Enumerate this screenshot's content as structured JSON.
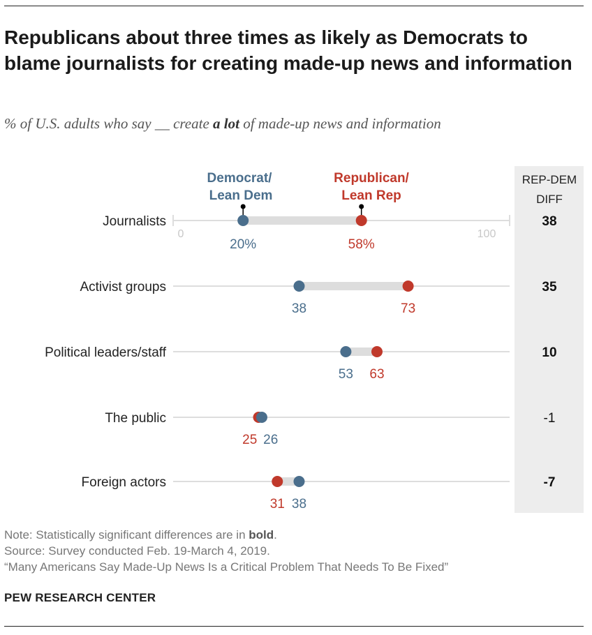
{
  "title": "Republicans about three times as likely as Democrats to blame journalists for creating made-up news and information",
  "subtitle": {
    "before": "% of U.S. adults who say __ create ",
    "emphasis": "a lot",
    "after": " of made-up news and information"
  },
  "colors": {
    "dem": "#4a6e8c",
    "rep": "#c0392b",
    "track": "#dddddd",
    "diff_column": "#ededed"
  },
  "chart_data": {
    "type": "dot-range",
    "axis": {
      "min": 0,
      "max": 100,
      "tick_labels": [
        "0",
        "100"
      ]
    },
    "legend": {
      "dem": [
        "Democrat/",
        "Lean Dem"
      ],
      "rep": [
        "Republican/",
        "Lean Rep"
      ]
    },
    "diff_header": [
      "REP-DEM",
      "DIFF"
    ],
    "categories": [
      "Journalists",
      "Activist groups",
      "Political leaders/staff",
      "The public",
      "Foreign actors"
    ],
    "series": [
      {
        "name": "Democrat/Lean Dem",
        "key": "dem",
        "values": [
          20,
          38,
          53,
          26,
          38
        ],
        "labels": [
          "20%",
          "38",
          "53",
          "26",
          "38"
        ]
      },
      {
        "name": "Republican/Lean Rep",
        "key": "rep",
        "values": [
          58,
          73,
          63,
          25,
          31
        ],
        "labels": [
          "58%",
          "73",
          "63",
          "25",
          "31"
        ]
      }
    ],
    "diff": [
      "38",
      "35",
      "10",
      "-1",
      "-7"
    ],
    "diff_bold": [
      true,
      true,
      true,
      false,
      true
    ]
  },
  "notes": {
    "note_before": "Note: Statistically significant differences are in ",
    "note_bold": "bold",
    "note_after": ".",
    "source": "Source: Survey conducted Feb. 19-March 4, 2019.",
    "report": "“Many Americans Say Made-Up News Is a Critical Problem That Needs To Be Fixed”"
  },
  "brand": "PEW RESEARCH CENTER"
}
